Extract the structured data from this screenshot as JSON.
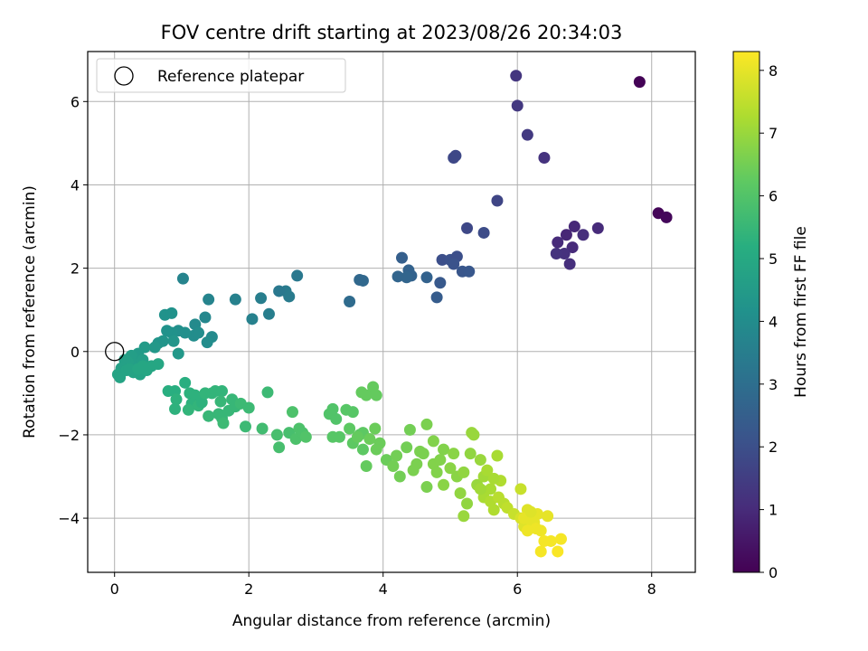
{
  "chart_data": {
    "type": "scatter",
    "title": "FOV centre drift starting at 2023/08/26 20:34:03",
    "xlabel": "Angular distance from reference (arcmin)",
    "ylabel": "Rotation from reference (arcmin)",
    "xlim": [
      -0.4,
      8.65
    ],
    "ylim": [
      -5.3,
      7.2
    ],
    "xticks": [
      0,
      2,
      4,
      6,
      8
    ],
    "yticks": [
      -4,
      -2,
      0,
      2,
      4,
      6
    ],
    "grid": true,
    "legend": {
      "position": "top-left",
      "entries": [
        "Reference platepar"
      ]
    },
    "reference_point": {
      "x": 0,
      "y": 0
    },
    "colorbar": {
      "label": "Hours from first FF file",
      "min": 0,
      "max": 8.3,
      "ticks": [
        0,
        1,
        2,
        3,
        4,
        5,
        6,
        7,
        8
      ],
      "colormap": "viridis"
    },
    "points": [
      [
        7.82,
        6.47,
        0.05
      ],
      [
        8.1,
        3.32,
        0.1
      ],
      [
        8.22,
        3.22,
        0.15
      ],
      [
        5.98,
        6.62,
        1.3
      ],
      [
        6.0,
        5.9,
        1.35
      ],
      [
        6.15,
        5.2,
        1.4
      ],
      [
        6.4,
        4.65,
        1.2
      ],
      [
        5.05,
        4.65,
        1.8
      ],
      [
        5.08,
        4.7,
        1.8
      ],
      [
        5.7,
        3.62,
        1.7
      ],
      [
        5.25,
        2.96,
        1.8
      ],
      [
        5.5,
        2.85,
        1.9
      ],
      [
        7.2,
        2.96,
        1.0
      ],
      [
        6.98,
        2.8,
        1.1
      ],
      [
        6.85,
        3.0,
        0.95
      ],
      [
        6.73,
        2.8,
        0.9
      ],
      [
        6.82,
        2.5,
        1.0
      ],
      [
        6.6,
        2.62,
        1.0
      ],
      [
        6.7,
        2.35,
        1.15
      ],
      [
        6.58,
        2.35,
        1.2
      ],
      [
        6.78,
        2.1,
        1.1
      ],
      [
        4.88,
        2.2,
        2.0
      ],
      [
        5.0,
        2.2,
        2.05
      ],
      [
        5.1,
        2.28,
        2.0
      ],
      [
        5.05,
        2.1,
        2.1
      ],
      [
        5.18,
        1.92,
        2.2
      ],
      [
        5.28,
        1.92,
        2.25
      ],
      [
        4.85,
        1.65,
        2.3
      ],
      [
        4.8,
        1.3,
        2.4
      ],
      [
        4.28,
        2.25,
        2.5
      ],
      [
        4.38,
        1.95,
        2.6
      ],
      [
        4.42,
        1.82,
        2.6
      ],
      [
        4.35,
        1.78,
        2.7
      ],
      [
        4.22,
        1.8,
        2.7
      ],
      [
        4.65,
        1.78,
        2.6
      ],
      [
        3.65,
        1.72,
        2.8
      ],
      [
        3.7,
        1.7,
        2.8
      ],
      [
        3.5,
        1.2,
        2.9
      ],
      [
        2.72,
        1.82,
        3.3
      ],
      [
        2.55,
        1.45,
        3.4
      ],
      [
        2.6,
        1.32,
        3.4
      ],
      [
        2.45,
        1.45,
        3.3
      ],
      [
        2.18,
        1.28,
        3.5
      ],
      [
        2.05,
        0.78,
        3.6
      ],
      [
        2.3,
        0.9,
        3.5
      ],
      [
        1.8,
        1.25,
        3.6
      ],
      [
        1.4,
        1.25,
        3.7
      ],
      [
        1.35,
        0.82,
        3.8
      ],
      [
        1.02,
        1.75,
        3.7
      ],
      [
        1.2,
        0.65,
        3.9
      ],
      [
        1.18,
        0.38,
        4.0
      ],
      [
        1.25,
        0.45,
        4.0
      ],
      [
        1.45,
        0.35,
        3.9
      ],
      [
        1.38,
        0.22,
        4.0
      ],
      [
        1.05,
        0.45,
        4.1
      ],
      [
        0.95,
        0.5,
        4.1
      ],
      [
        0.85,
        0.45,
        4.2
      ],
      [
        0.75,
        0.88,
        4.2
      ],
      [
        0.85,
        0.92,
        4.2
      ],
      [
        0.78,
        0.5,
        4.2
      ],
      [
        0.72,
        0.25,
        4.3
      ],
      [
        0.65,
        0.2,
        4.3
      ],
      [
        0.88,
        0.25,
        4.3
      ],
      [
        0.95,
        -0.05,
        4.4
      ],
      [
        0.6,
        0.1,
        4.4
      ],
      [
        0.45,
        0.1,
        4.5
      ],
      [
        0.35,
        -0.05,
        4.5
      ],
      [
        0.25,
        -0.1,
        4.6
      ],
      [
        0.3,
        -0.3,
        4.6
      ],
      [
        0.42,
        -0.2,
        4.6
      ],
      [
        0.2,
        -0.25,
        4.7
      ],
      [
        0.15,
        -0.2,
        4.7
      ],
      [
        0.1,
        -0.4,
        4.7
      ],
      [
        0.05,
        -0.55,
        4.8
      ],
      [
        0.08,
        -0.62,
        4.8
      ],
      [
        0.18,
        -0.45,
        4.8
      ],
      [
        0.28,
        -0.5,
        4.8
      ],
      [
        0.38,
        -0.55,
        4.8
      ],
      [
        0.48,
        -0.45,
        4.9
      ],
      [
        0.55,
        -0.35,
        4.9
      ],
      [
        0.65,
        -0.3,
        4.9
      ],
      [
        0.42,
        -0.35,
        4.9
      ],
      [
        0.22,
        -0.42,
        4.8
      ],
      [
        0.35,
        -0.42,
        4.9
      ],
      [
        0.8,
        -0.95,
        5.2
      ],
      [
        0.9,
        -0.95,
        5.2
      ],
      [
        0.92,
        -1.15,
        5.3
      ],
      [
        0.9,
        -1.38,
        5.3
      ],
      [
        1.05,
        -0.75,
        5.2
      ],
      [
        1.12,
        -1.0,
        5.3
      ],
      [
        1.2,
        -1.05,
        5.3
      ],
      [
        1.15,
        -1.25,
        5.3
      ],
      [
        1.1,
        -1.4,
        5.4
      ],
      [
        1.25,
        -1.3,
        5.4
      ],
      [
        1.3,
        -1.22,
        5.3
      ],
      [
        1.35,
        -1.0,
        5.4
      ],
      [
        1.45,
        -1.0,
        5.4
      ],
      [
        1.5,
        -0.95,
        5.4
      ],
      [
        1.6,
        -0.95,
        5.4
      ],
      [
        1.58,
        -1.2,
        5.5
      ],
      [
        1.4,
        -1.55,
        5.5
      ],
      [
        1.55,
        -1.5,
        5.5
      ],
      [
        1.6,
        -1.6,
        5.5
      ],
      [
        1.62,
        -1.72,
        5.6
      ],
      [
        1.7,
        -1.42,
        5.5
      ],
      [
        1.8,
        -1.32,
        5.5
      ],
      [
        1.75,
        -1.15,
        5.5
      ],
      [
        1.88,
        -1.25,
        5.6
      ],
      [
        1.95,
        -1.8,
        5.6
      ],
      [
        2.0,
        -1.35,
        5.6
      ],
      [
        2.2,
        -1.85,
        5.7
      ],
      [
        2.28,
        -0.98,
        5.6
      ],
      [
        2.42,
        -2.0,
        5.8
      ],
      [
        2.45,
        -2.3,
        5.8
      ],
      [
        2.6,
        -1.95,
        5.8
      ],
      [
        2.7,
        -2.1,
        5.9
      ],
      [
        2.65,
        -1.45,
        5.9
      ],
      [
        2.75,
        -1.85,
        5.9
      ],
      [
        2.8,
        -1.95,
        5.9
      ],
      [
        2.85,
        -2.05,
        6.0
      ],
      [
        3.2,
        -1.5,
        6.0
      ],
      [
        3.25,
        -1.38,
        6.0
      ],
      [
        3.3,
        -1.62,
        6.0
      ],
      [
        3.25,
        -2.05,
        6.1
      ],
      [
        3.35,
        -2.05,
        6.1
      ],
      [
        3.45,
        -1.4,
        6.1
      ],
      [
        3.55,
        -1.45,
        6.1
      ],
      [
        3.5,
        -1.85,
        6.2
      ],
      [
        3.55,
        -2.2,
        6.2
      ],
      [
        3.65,
        -2.0,
        6.2
      ],
      [
        3.7,
        -2.35,
        6.2
      ],
      [
        3.7,
        -1.95,
        6.2
      ],
      [
        3.62,
        -2.05,
        6.3
      ],
      [
        3.75,
        -2.75,
        6.3
      ],
      [
        3.68,
        -0.98,
        6.3
      ],
      [
        3.75,
        -1.05,
        6.3
      ],
      [
        3.85,
        -0.85,
        6.3
      ],
      [
        3.9,
        -1.05,
        6.3
      ],
      [
        3.88,
        -1.85,
        6.4
      ],
      [
        3.95,
        -2.2,
        6.4
      ],
      [
        3.8,
        -2.1,
        6.4
      ],
      [
        3.9,
        -2.35,
        6.4
      ],
      [
        4.05,
        -2.6,
        6.4
      ],
      [
        4.15,
        -2.75,
        6.5
      ],
      [
        4.2,
        -2.5,
        6.5
      ],
      [
        4.35,
        -2.3,
        6.5
      ],
      [
        4.25,
        -3.0,
        6.5
      ],
      [
        4.4,
        -1.88,
        6.5
      ],
      [
        4.45,
        -2.85,
        6.6
      ],
      [
        4.5,
        -2.7,
        6.6
      ],
      [
        4.55,
        -2.4,
        6.6
      ],
      [
        4.6,
        -2.45,
        6.6
      ],
      [
        4.65,
        -1.75,
        6.6
      ],
      [
        4.65,
        -3.25,
        6.6
      ],
      [
        4.75,
        -2.15,
        6.7
      ],
      [
        4.75,
        -2.7,
        6.7
      ],
      [
        4.8,
        -2.9,
        6.7
      ],
      [
        4.85,
        -2.6,
        6.7
      ],
      [
        4.9,
        -2.35,
        6.7
      ],
      [
        4.9,
        -3.2,
        6.8
      ],
      [
        5.0,
        -2.8,
        6.8
      ],
      [
        5.05,
        -2.45,
        6.8
      ],
      [
        5.1,
        -3.0,
        6.8
      ],
      [
        5.15,
        -3.4,
        6.9
      ],
      [
        5.2,
        -2.9,
        6.9
      ],
      [
        5.25,
        -3.65,
        6.9
      ],
      [
        5.2,
        -3.95,
        7.0
      ],
      [
        5.3,
        -2.45,
        6.9
      ],
      [
        5.32,
        -1.95,
        7.0
      ],
      [
        5.35,
        -2.0,
        7.0
      ],
      [
        5.4,
        -3.2,
        7.0
      ],
      [
        5.45,
        -2.6,
        7.0
      ],
      [
        5.5,
        -3.0,
        7.1
      ],
      [
        5.5,
        -3.5,
        7.2
      ],
      [
        5.55,
        -2.85,
        7.2
      ],
      [
        5.6,
        -3.3,
        7.2
      ],
      [
        5.6,
        -3.6,
        7.3
      ],
      [
        5.65,
        -3.8,
        7.3
      ],
      [
        5.7,
        -2.5,
        7.2
      ],
      [
        5.75,
        -3.1,
        7.3
      ],
      [
        5.72,
        -3.5,
        7.4
      ],
      [
        5.8,
        -3.65,
        7.4
      ],
      [
        5.85,
        -3.75,
        7.5
      ],
      [
        5.95,
        -3.9,
        7.6
      ],
      [
        6.05,
        -3.3,
        7.6
      ],
      [
        6.05,
        -4.0,
        7.8
      ],
      [
        6.1,
        -4.2,
        7.9
      ],
      [
        6.15,
        -3.8,
        7.9
      ],
      [
        6.2,
        -4.05,
        8.0
      ],
      [
        6.25,
        -4.1,
        8.0
      ],
      [
        6.28,
        -4.25,
        8.1
      ],
      [
        6.3,
        -3.9,
        8.0
      ],
      [
        6.35,
        -4.3,
        8.1
      ],
      [
        6.35,
        -4.8,
        8.2
      ],
      [
        6.45,
        -3.95,
        8.0
      ],
      [
        6.5,
        -4.55,
        8.2
      ],
      [
        6.6,
        -4.8,
        8.25
      ],
      [
        6.65,
        -4.5,
        8.2
      ],
      [
        6.4,
        -4.55,
        8.2
      ],
      [
        6.15,
        -4.3,
        8.1
      ],
      [
        6.1,
        -4.0,
        8.0
      ],
      [
        5.65,
        -3.05,
        7.2
      ],
      [
        5.45,
        -3.3,
        7.1
      ],
      [
        6.2,
        -3.85,
        7.9
      ]
    ]
  }
}
